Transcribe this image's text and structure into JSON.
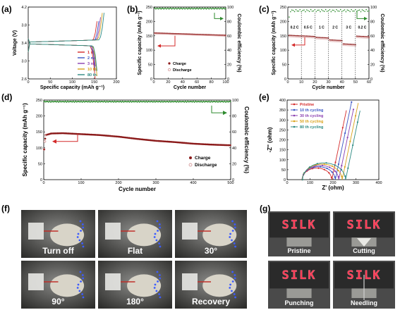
{
  "chart_data": [
    {
      "panel": "(a)",
      "type": "line",
      "xlabel": "Specific capacity (mAh g⁻¹)",
      "ylabel": "Voltage (V)",
      "xlim": [
        0,
        200
      ],
      "ylim": [
        2.6,
        4.2
      ],
      "xticks": [
        "0",
        "50",
        "100",
        "150",
        "200"
      ],
      "yticks": [
        "2.6",
        "3.0",
        "3.4",
        "3.8",
        "4.2"
      ],
      "legend_position": "bottom-right",
      "series": [
        {
          "name": "1 st",
          "color": "#d42a2a",
          "charge_end": 158,
          "discharge_end": 152
        },
        {
          "name": "2 nd",
          "color": "#3a55c4",
          "charge_end": 162,
          "discharge_end": 154
        },
        {
          "name": "3 rd",
          "color": "#8a3fb0",
          "charge_end": 165,
          "discharge_end": 155
        },
        {
          "name": "10 th",
          "color": "#d9a21b",
          "charge_end": 168,
          "discharge_end": 157
        },
        {
          "name": "80 th",
          "color": "#2c8a82",
          "charge_end": 172,
          "discharge_end": 158
        }
      ]
    },
    {
      "panel": "(b)",
      "type": "scatter",
      "xlabel": "Cycle number",
      "ylabel": "Specific capacity (mAh g⁻¹)",
      "y2label": "Coulombic efficiency (%)",
      "xlim": [
        0,
        100
      ],
      "ylim": [
        0,
        250
      ],
      "y2lim": [
        0,
        100
      ],
      "xticks": [
        "0",
        "20",
        "40",
        "60",
        "80",
        "100"
      ],
      "yticks": [
        "0",
        "50",
        "100",
        "150",
        "200",
        "250"
      ],
      "y2ticks": [
        "0",
        "20",
        "40",
        "60",
        "80",
        "100"
      ],
      "legend_position": "bottom-left",
      "legend": [
        "Charge",
        "Discharge"
      ],
      "charge_start": 160,
      "charge_end": 152,
      "discharge_start": 158,
      "discharge_end": 150,
      "efficiency": 98
    },
    {
      "panel": "(c)",
      "type": "scatter",
      "xlabel": "Cycle number",
      "ylabel": "Specific capacity (mAh g⁻¹)",
      "y2label": "Coulombic efficiency (%)",
      "xlim": [
        0,
        60
      ],
      "ylim": [
        0,
        250
      ],
      "y2lim": [
        0,
        100
      ],
      "xticks": [
        "0",
        "10",
        "20",
        "30",
        "40",
        "50",
        "60"
      ],
      "yticks": [
        "0",
        "50",
        "100",
        "150",
        "200",
        "250"
      ],
      "y2ticks": [
        "0",
        "20",
        "40",
        "60",
        "80",
        "100"
      ],
      "rates": [
        {
          "label": "0.2 C",
          "from": 0,
          "to": 10,
          "capacity": 150
        },
        {
          "label": "0.5 C",
          "from": 10,
          "to": 20,
          "capacity": 148
        },
        {
          "label": "1 C",
          "from": 20,
          "to": 30,
          "capacity": 143
        },
        {
          "label": "2 C",
          "from": 30,
          "to": 40,
          "capacity": 134
        },
        {
          "label": "3 C",
          "from": 40,
          "to": 50,
          "capacity": 120
        },
        {
          "label": "0.2 C",
          "from": 50,
          "to": 60,
          "capacity": 147
        }
      ],
      "efficiency": 95
    },
    {
      "panel": "(d)",
      "type": "scatter",
      "xlabel": "Cycle number",
      "ylabel": "Specific capacity (mAh g⁻¹)",
      "y2label": "Coulombic efficiency (%)",
      "xlim": [
        0,
        500
      ],
      "ylim": [
        0,
        250
      ],
      "y2lim": [
        0,
        100
      ],
      "xticks": [
        "0",
        "100",
        "200",
        "300",
        "400",
        "500"
      ],
      "yticks": [
        "0",
        "50",
        "100",
        "150",
        "200",
        "250"
      ],
      "y2ticks": [
        "0",
        "20",
        "40",
        "60",
        "80",
        "100"
      ],
      "legend_position": "bottom-right",
      "legend": [
        "Charge",
        "Discharge"
      ],
      "charge_points": [
        [
          1,
          95
        ],
        [
          5,
          140
        ],
        [
          20,
          145
        ],
        [
          50,
          146
        ],
        [
          100,
          143
        ],
        [
          150,
          140
        ],
        [
          200,
          135
        ],
        [
          250,
          128
        ],
        [
          300,
          122
        ],
        [
          350,
          118
        ],
        [
          400,
          113
        ],
        [
          450,
          110
        ],
        [
          500,
          108
        ]
      ],
      "efficiency": 98
    },
    {
      "panel": "(e)",
      "type": "line",
      "xlabel": "Z' (ohm)",
      "ylabel": "-Z'' (ohm)",
      "xlim": [
        0,
        400
      ],
      "ylim": [
        0,
        400
      ],
      "xticks": [
        "0",
        "100",
        "200",
        "300",
        "400"
      ],
      "yticks": [
        "0",
        "50",
        "100",
        "150",
        "200",
        "250",
        "300",
        "350",
        "400"
      ],
      "legend_position": "top-left",
      "series": [
        {
          "name": "Pristine",
          "color": "#d42a2a",
          "r_start": 65,
          "r_end": 195,
          "tail_x": 290
        },
        {
          "name": "10 th cycling",
          "color": "#3a55c4",
          "r_start": 65,
          "r_end": 210,
          "tail_x": 295
        },
        {
          "name": "30 th cycling",
          "color": "#8a3fb0",
          "r_start": 66,
          "r_end": 225,
          "tail_x": 302
        },
        {
          "name": "50 th cycling",
          "color": "#d9a21b",
          "r_start": 66,
          "r_end": 240,
          "tail_x": 310
        },
        {
          "name": "80 th cycling",
          "color": "#2c8a82",
          "r_start": 67,
          "r_end": 255,
          "tail_x": 318
        }
      ]
    }
  ],
  "panel_labels": {
    "a": "(a)",
    "b": "(b)",
    "c": "(c)",
    "d": "(d)",
    "e": "(e)",
    "f": "(f)",
    "g": "(g)"
  },
  "photos_f": [
    "Turn off",
    "Flat",
    "30°",
    "90°",
    "180°",
    "Recovery"
  ],
  "photos_g": [
    "Pristine",
    "Cutting",
    "Punching",
    "Needling"
  ],
  "silk_text": "SILK",
  "colors": {
    "charge": "#8b1a1a",
    "discharge": "#c87a7a",
    "efficiency": "#2e8b2e",
    "arrow_red": "#d42a2a",
    "arrow_green": "#2e8b2e"
  }
}
